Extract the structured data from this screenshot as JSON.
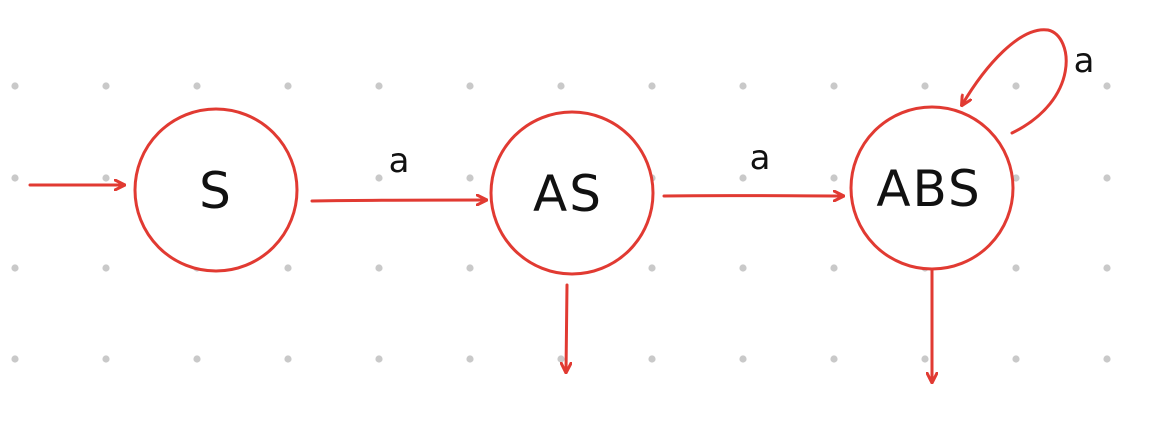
{
  "diagram": {
    "type": "finite-automaton",
    "colors": {
      "edge": "#e13a32",
      "text": "#111111",
      "grid_dot": "#c9c9c9",
      "background": "#ffffff"
    },
    "states": [
      {
        "id": "S",
        "label": "S"
      },
      {
        "id": "AS",
        "label": "AS"
      },
      {
        "id": "ABS",
        "label": "ABS"
      }
    ],
    "start_state": "S",
    "accepting_exit_arrows": [
      "AS",
      "ABS"
    ],
    "transitions": [
      {
        "from": "S",
        "to": "AS",
        "label": "a"
      },
      {
        "from": "AS",
        "to": "ABS",
        "label": "a"
      },
      {
        "from": "ABS",
        "to": "ABS",
        "label": "a"
      }
    ]
  }
}
